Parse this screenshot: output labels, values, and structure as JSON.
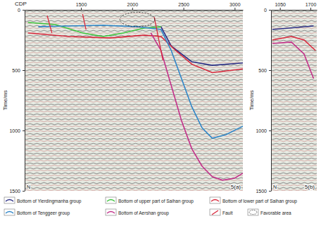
{
  "chart_data": [
    {
      "type": "line",
      "title": "5(a)",
      "x_label": "CDP",
      "y_label": "Time/ms",
      "annotations": [
        "N"
      ],
      "xlim": [
        950,
        3080
      ],
      "ylim": [
        1500,
        0
      ],
      "xticks": [
        1500,
        2000,
        2500,
        3000
      ],
      "yticks": [
        0,
        500,
        1000,
        1500
      ],
      "legend": "bottom",
      "series": [
        {
          "name": "Bottom of Yierdingmanha group",
          "color": "#2c2f86",
          "x": [
            2281,
            2381,
            2581,
            2781,
            3080
          ],
          "values": [
            140,
            300,
            430,
            460,
            440
          ]
        },
        {
          "name": "Bottom of upper part of Saihan group",
          "color": "#3cc43c",
          "x": [
            983,
            1250,
            1516,
            1716,
            1915,
            2115,
            2281
          ],
          "values": [
            105,
            122,
            192,
            221,
            192,
            151,
            140
          ]
        },
        {
          "name": "Bottom of lower part of Saihan group",
          "color": "#d8283c",
          "x": [
            983,
            1383,
            1783,
            2115,
            2281,
            2415,
            2581,
            2781,
            3080
          ],
          "values": [
            192,
            221,
            233,
            210,
            221,
            330,
            450,
            520,
            490
          ]
        },
        {
          "name": "Bottom of Tenggeer group",
          "color": "#2f86c8",
          "x": [
            1083,
            1383,
            1716,
            2049,
            2281,
            2381,
            2481,
            2581,
            2681,
            2781,
            2914,
            3080
          ],
          "values": [
            140,
            134,
            128,
            140,
            163,
            337,
            570,
            802,
            977,
            1064,
            1035,
            965
          ]
        },
        {
          "name": "Bottom of Aershan group",
          "color": "#c2318a",
          "x": [
            2182,
            2281,
            2381,
            2481,
            2581,
            2681,
            2781,
            2881,
            3000,
            3080
          ],
          "values": [
            192,
            337,
            628,
            919,
            1150,
            1295,
            1383,
            1412,
            1395,
            1354
          ]
        }
      ],
      "faults": {
        "name": "Fault",
        "color": "#d8283c",
        "segments": [
          {
            "x": [
              1170,
              1216
            ],
            "values": [
              47,
              192
            ]
          },
          {
            "x": [
              1516,
              1549
            ],
            "values": [
              35,
              163
            ]
          },
          {
            "x": [
              2215,
              2300
            ],
            "values": [
              60,
              420
            ]
          }
        ]
      },
      "favorable": {
        "name": "Favorable area",
        "areas": [
          {
            "x": [
              1880,
              2220
            ],
            "values": [
              20,
              140
            ]
          }
        ]
      }
    },
    {
      "type": "line",
      "title": "5(b)",
      "y_label": "Time/ms",
      "annotations": [
        "N"
      ],
      "xlim": [
        860,
        1835
      ],
      "ylim": [
        1500,
        0
      ],
      "xticks": [
        1050,
        1700
      ],
      "yticks": [
        0,
        500,
        1000,
        1500
      ],
      "series": [
        {
          "color": "#2c2f86",
          "x": [
            887,
            1293,
            1767
          ],
          "values": [
            163,
            150,
            134
          ]
        },
        {
          "color": "#d8283c",
          "x": [
            887,
            1293,
            1564,
            1808
          ],
          "values": [
            250,
            221,
            250,
            337
          ]
        },
        {
          "color": "#c2318a",
          "x": [
            887,
            1293,
            1564,
            1767
          ],
          "values": [
            279,
            267,
            366,
            570
          ]
        }
      ]
    }
  ]
}
